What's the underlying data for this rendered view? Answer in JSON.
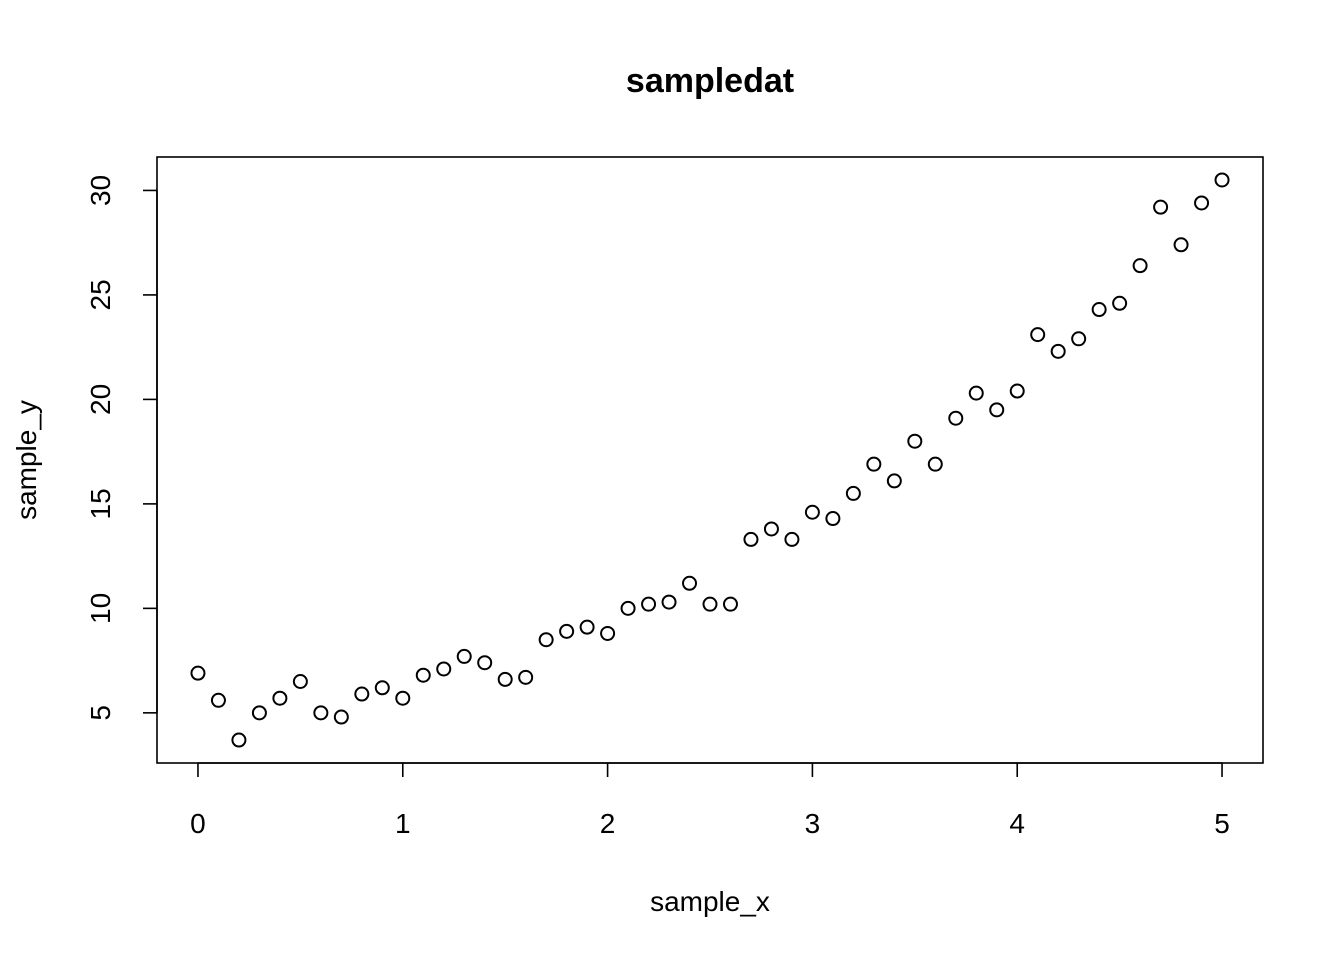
{
  "chart_data": {
    "type": "scatter",
    "title": "sampledat",
    "xlabel": "sample_x",
    "ylabel": "sample_y",
    "xlim": [
      -0.2,
      5.2
    ],
    "ylim": [
      2.6,
      31.6
    ],
    "xticks": [
      0,
      1,
      2,
      3,
      4,
      5
    ],
    "yticks": [
      5,
      10,
      15,
      20,
      25,
      30
    ],
    "xtick_labels": [
      "0",
      "1",
      "2",
      "3",
      "4",
      "5"
    ],
    "ytick_labels": [
      "5",
      "10",
      "15",
      "20",
      "25",
      "30"
    ],
    "grid": false,
    "marker": "open-circle",
    "color": "#000000",
    "points": [
      {
        "x": 0.0,
        "y": 6.9
      },
      {
        "x": 0.1,
        "y": 5.6
      },
      {
        "x": 0.2,
        "y": 3.7
      },
      {
        "x": 0.3,
        "y": 5.0
      },
      {
        "x": 0.4,
        "y": 5.7
      },
      {
        "x": 0.5,
        "y": 6.5
      },
      {
        "x": 0.6,
        "y": 5.0
      },
      {
        "x": 0.7,
        "y": 4.8
      },
      {
        "x": 0.8,
        "y": 5.9
      },
      {
        "x": 0.9,
        "y": 6.2
      },
      {
        "x": 1.0,
        "y": 5.7
      },
      {
        "x": 1.1,
        "y": 6.8
      },
      {
        "x": 1.2,
        "y": 7.1
      },
      {
        "x": 1.3,
        "y": 7.7
      },
      {
        "x": 1.4,
        "y": 7.4
      },
      {
        "x": 1.5,
        "y": 6.6
      },
      {
        "x": 1.6,
        "y": 6.7
      },
      {
        "x": 1.7,
        "y": 8.5
      },
      {
        "x": 1.8,
        "y": 8.9
      },
      {
        "x": 1.9,
        "y": 9.1
      },
      {
        "x": 2.0,
        "y": 8.8
      },
      {
        "x": 2.1,
        "y": 10.0
      },
      {
        "x": 2.2,
        "y": 10.2
      },
      {
        "x": 2.3,
        "y": 10.3
      },
      {
        "x": 2.4,
        "y": 11.2
      },
      {
        "x": 2.5,
        "y": 10.2
      },
      {
        "x": 2.6,
        "y": 10.2
      },
      {
        "x": 2.7,
        "y": 13.3
      },
      {
        "x": 2.8,
        "y": 13.8
      },
      {
        "x": 2.9,
        "y": 13.3
      },
      {
        "x": 3.0,
        "y": 14.6
      },
      {
        "x": 3.1,
        "y": 14.3
      },
      {
        "x": 3.2,
        "y": 15.5
      },
      {
        "x": 3.3,
        "y": 16.9
      },
      {
        "x": 3.4,
        "y": 16.1
      },
      {
        "x": 3.5,
        "y": 18.0
      },
      {
        "x": 3.6,
        "y": 16.9
      },
      {
        "x": 3.7,
        "y": 19.1
      },
      {
        "x": 3.8,
        "y": 20.3
      },
      {
        "x": 3.9,
        "y": 19.5
      },
      {
        "x": 4.0,
        "y": 20.4
      },
      {
        "x": 4.1,
        "y": 23.1
      },
      {
        "x": 4.2,
        "y": 22.3
      },
      {
        "x": 4.3,
        "y": 22.9
      },
      {
        "x": 4.4,
        "y": 24.3
      },
      {
        "x": 4.5,
        "y": 24.6
      },
      {
        "x": 4.6,
        "y": 26.4
      },
      {
        "x": 4.7,
        "y": 29.2
      },
      {
        "x": 4.8,
        "y": 27.4
      },
      {
        "x": 4.9,
        "y": 29.4
      },
      {
        "x": 5.0,
        "y": 30.5
      }
    ]
  }
}
